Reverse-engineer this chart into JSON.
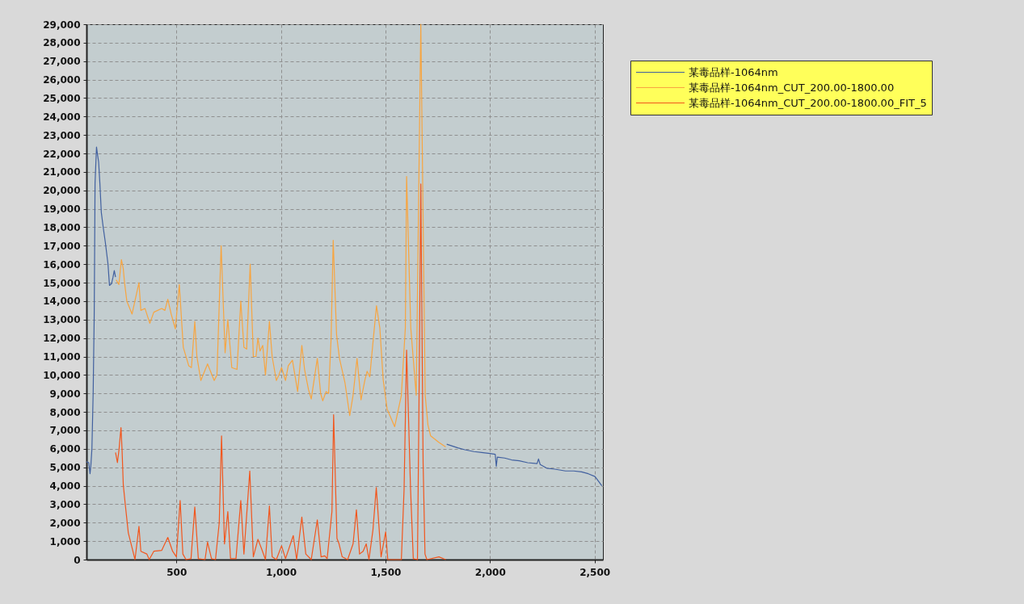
{
  "chart_data": {
    "type": "line",
    "xlim": [
      70,
      2540
    ],
    "ylim": [
      0,
      29000
    ],
    "xticks": [
      500,
      {
        "value": 1000,
        "label": "1,000"
      },
      {
        "value": 1500,
        "label": "1,500"
      },
      {
        "value": 2000,
        "label": "2,000"
      },
      {
        "value": 2500,
        "label": "2,500"
      }
    ],
    "yticks": [
      0,
      {
        "value": 1000,
        "label": "1,000"
      },
      {
        "value": 2000,
        "label": "2,000"
      },
      {
        "value": 3000,
        "label": "3,000"
      },
      {
        "value": 4000,
        "label": "4,000"
      },
      {
        "value": 5000,
        "label": "5,000"
      },
      {
        "value": 6000,
        "label": "6,000"
      },
      {
        "value": 7000,
        "label": "7,000"
      },
      {
        "value": 8000,
        "label": "8,000"
      },
      {
        "value": 9000,
        "label": "9,000"
      },
      {
        "value": 10000,
        "label": "10,000"
      },
      {
        "value": 11000,
        "label": "11,000"
      },
      {
        "value": 12000,
        "label": "12,000"
      },
      {
        "value": 13000,
        "label": "13,000"
      },
      {
        "value": 14000,
        "label": "14,000"
      },
      {
        "value": 15000,
        "label": "15,000"
      },
      {
        "value": 16000,
        "label": "16,000"
      },
      {
        "value": 17000,
        "label": "17,000"
      },
      {
        "value": 18000,
        "label": "18,000"
      },
      {
        "value": 19000,
        "label": "19,000"
      },
      {
        "value": 20000,
        "label": "20,000"
      },
      {
        "value": 21000,
        "label": "21,000"
      },
      {
        "value": 22000,
        "label": "22,000"
      },
      {
        "value": 23000,
        "label": "23,000"
      },
      {
        "value": 24000,
        "label": "24,000"
      },
      {
        "value": 25000,
        "label": "25,000"
      },
      {
        "value": 26000,
        "label": "26,000"
      },
      {
        "value": 27000,
        "label": "27,000"
      },
      {
        "value": 28000,
        "label": "28,000"
      },
      {
        "value": 29000,
        "label": "29,000"
      }
    ],
    "grid": true,
    "legend": "right",
    "line_style": "solid",
    "series": [
      {
        "name": "某毒品样-1064nm",
        "color": "#41609f",
        "x": [
          70,
          81,
          87,
          91,
          96,
          102,
          107,
          109,
          111,
          118,
          122,
          128,
          134,
          141,
          150,
          160,
          173,
          180,
          190,
          197,
          203,
          209,
          1000,
          1793,
          1846,
          1880,
          1923,
          1960,
          2000,
          2025,
          2030,
          2035,
          2070,
          2103,
          2140,
          2180,
          2225,
          2232,
          2240,
          2271,
          2310,
          2361,
          2400,
          2438,
          2470,
          2502,
          2535
        ],
        "values": [
          5300,
          5250,
          4650,
          5100,
          6000,
          9050,
          13250,
          16700,
          20400,
          22350,
          22000,
          21550,
          20400,
          18800,
          18000,
          17200,
          16000,
          14850,
          14950,
          15300,
          15650,
          15300,
          null,
          6250,
          6050,
          5950,
          5850,
          5800,
          5750,
          5700,
          5050,
          5550,
          5500,
          5400,
          5350,
          5250,
          5200,
          5450,
          5150,
          4950,
          4900,
          4800,
          4800,
          4750,
          4650,
          4500,
          4000
        ]
      },
      {
        "name": "某毒品样-1064nm_CUT_200.00-1800.00",
        "color": "#f7a541",
        "x": [
          212,
          225,
          237,
          246,
          252,
          263,
          288,
          321,
          330,
          350,
          373,
          392,
          430,
          445,
          459,
          475,
          495,
          514,
          533,
          559,
          572,
          588,
          598,
          617,
          649,
          681,
          694,
          714,
          733,
          746,
          765,
          790,
          808,
          823,
          836,
          853,
          868,
          881,
          890,
          900,
          913,
          926,
          945,
          958,
          978,
          990,
          1003,
          1022,
          1035,
          1055,
          1080,
          1100,
          1113,
          1132,
          1145,
          1174,
          1190,
          1200,
          1216,
          1228,
          1240,
          1250,
          1266,
          1280,
          1306,
          1329,
          1345,
          1364,
          1383,
          1402,
          1412,
          1425,
          1438,
          1457,
          1473,
          1489,
          1508,
          1544,
          1576,
          1595,
          1601,
          1621,
          1647,
          1669,
          1690,
          1703,
          1716,
          1755,
          1788
        ],
        "values": [
          15150,
          14900,
          16250,
          15750,
          15000,
          14000,
          13300,
          15000,
          13500,
          13600,
          12800,
          13400,
          13600,
          13500,
          14100,
          13300,
          12500,
          14900,
          11500,
          10500,
          10400,
          12900,
          11000,
          9700,
          10600,
          9700,
          10000,
          17000,
          11200,
          13000,
          10400,
          10300,
          14000,
          11500,
          11400,
          16000,
          11000,
          11000,
          12000,
          11300,
          11600,
          10000,
          12900,
          11000,
          9700,
          10000,
          10400,
          9700,
          10500,
          10800,
          9100,
          11600,
          10300,
          9200,
          8700,
          10900,
          9000,
          8600,
          9100,
          9000,
          12000,
          17300,
          12200,
          10900,
          9600,
          7800,
          8900,
          10900,
          8650,
          9750,
          10200,
          9900,
          11500,
          13750,
          12550,
          9750,
          8150,
          7200,
          8900,
          12550,
          20750,
          12550,
          8900,
          29000,
          8900,
          7300,
          6700,
          6350,
          6100
        ]
      },
      {
        "name": "某毒品样-1064nm_CUT_200.00-1800.00_FIT_5",
        "color": "#f2561d",
        "x": [
          209,
          218,
          226,
          235,
          240,
          246,
          255,
          270,
          289,
          302,
          321,
          330,
          359,
          370,
          392,
          430,
          459,
          482,
          500,
          518,
          531,
          546,
          570,
          588,
          605,
          637,
          649,
          668,
          687,
          705,
          716,
          730,
          746,
          759,
          785,
          808,
          823,
          851,
          868,
          890,
          907,
          926,
          945,
          958,
          978,
          1003,
          1022,
          1059,
          1075,
          1100,
          1119,
          1145,
          1174,
          1192,
          1210,
          1221,
          1244,
          1252,
          1268,
          1278,
          1293,
          1319,
          1345,
          1361,
          1376,
          1393,
          1408,
          1421,
          1440,
          1456,
          1479,
          1501,
          1511,
          1576,
          1589,
          1601,
          1620,
          1633,
          1653,
          1660,
          1669,
          1680,
          1689,
          1698,
          1756,
          1788
        ],
        "values": [
          5800,
          5250,
          6000,
          7150,
          6000,
          4050,
          3050,
          1450,
          600,
          0,
          1800,
          450,
          300,
          0,
          450,
          500,
          1200,
          450,
          150,
          3200,
          300,
          0,
          50,
          2850,
          50,
          0,
          950,
          50,
          0,
          2000,
          6700,
          850,
          2600,
          50,
          50,
          3200,
          300,
          4800,
          150,
          1100,
          600,
          0,
          2900,
          150,
          0,
          750,
          50,
          1300,
          0,
          2300,
          300,
          0,
          2150,
          150,
          200,
          50,
          2600,
          7850,
          1150,
          850,
          150,
          0,
          850,
          2700,
          300,
          450,
          850,
          0,
          1600,
          3900,
          150,
          1500,
          0,
          0,
          3800,
          11350,
          3800,
          50,
          0,
          8100,
          20350,
          5250,
          300,
          0,
          150,
          0
        ]
      }
    ]
  }
}
